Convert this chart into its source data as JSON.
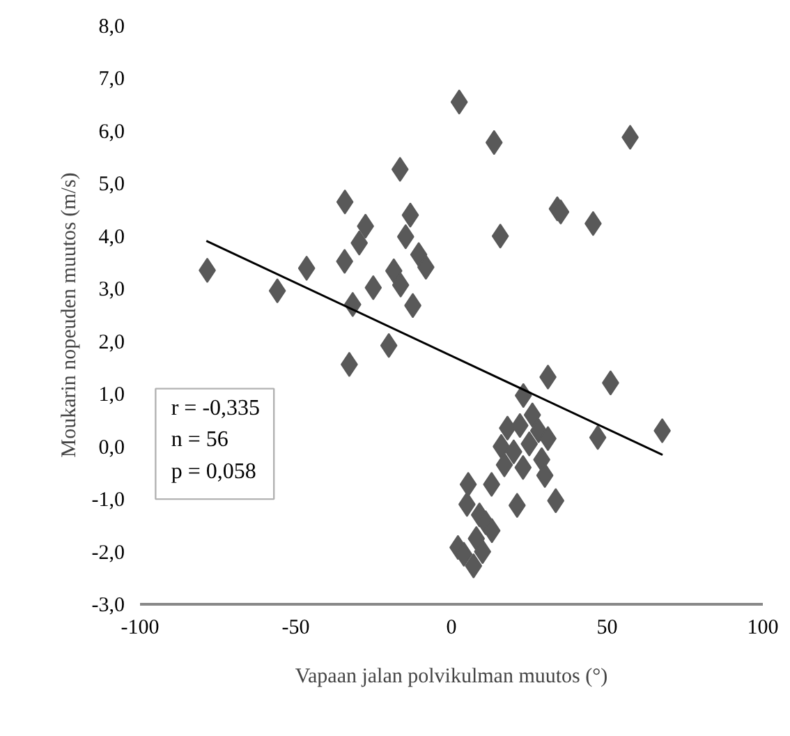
{
  "chart_data": {
    "type": "scatter",
    "xlabel": "Vapaan jalan polvikulman muutos (°)",
    "ylabel": "Moukarin nopeuden muutos (m/s)",
    "series": [
      {
        "color": "#595959",
        "marker": "diamond",
        "x": [
          2.5,
          13.7,
          57.4,
          -16.5,
          -34.2,
          34,
          35.1,
          45.5,
          -13.2,
          15.7,
          -27.6,
          -14.7,
          -29.6,
          -10.5,
          -8.2,
          -34.3,
          -18.5,
          -78.4,
          -46.5,
          -55.9,
          -16.3,
          -25.1,
          -12.4,
          -31.7,
          -20.1,
          -32.8,
          31,
          51.1,
          23.1,
          67.7,
          47,
          33.5,
          21.1,
          12.9,
          5.4,
          7.1,
          2.1,
          18,
          22,
          28,
          31,
          16,
          20,
          25,
          29,
          17,
          23,
          30,
          26,
          5,
          9,
          11,
          13,
          8,
          10,
          4
        ],
        "values": [
          6.55,
          5.78,
          5.88,
          5.27,
          4.65,
          4.52,
          4.46,
          4.24,
          4.4,
          4.0,
          4.19,
          3.99,
          3.87,
          3.65,
          3.41,
          3.52,
          3.34,
          3.35,
          3.39,
          2.96,
          3.07,
          3.02,
          2.68,
          2.7,
          1.92,
          1.56,
          1.32,
          1.21,
          0.97,
          0.3,
          0.17,
          -1.03,
          -1.12,
          -0.72,
          -0.72,
          -2.27,
          -1.92,
          0.35,
          0.4,
          0.3,
          0.15,
          0.0,
          -0.1,
          0.05,
          -0.25,
          -0.35,
          -0.4,
          -0.55,
          0.6,
          -1.1,
          -1.3,
          -1.45,
          -1.6,
          -1.75,
          -2.0,
          -2.05
        ]
      },
      {
        "type": "line",
        "color": "#000000",
        "line_style": "solid",
        "x": [
          -78.7,
          67.8
        ],
        "values": [
          3.91,
          -0.16
        ]
      }
    ],
    "annotations": [
      "r = -0,335",
      "n = 56",
      "p = 0,058"
    ],
    "xlim": [
      -100,
      100
    ],
    "xticks": [
      -100,
      -50,
      0,
      50,
      100
    ],
    "ylim": [
      -3,
      8
    ],
    "yticks": [
      {
        "value": -3,
        "label": "-3,0"
      },
      {
        "value": -2,
        "label": "-2,0"
      },
      {
        "value": -1,
        "label": "-1,0"
      },
      {
        "value": 0,
        "label": "0,0"
      },
      {
        "value": 1,
        "label": "1,0"
      },
      {
        "value": 2,
        "label": "2,0"
      },
      {
        "value": 3,
        "label": "3,0"
      },
      {
        "value": 4,
        "label": "4,0"
      },
      {
        "value": 5,
        "label": "5,0"
      },
      {
        "value": 6,
        "label": "6,0"
      },
      {
        "value": 7,
        "label": "7,0"
      },
      {
        "value": 8,
        "label": "8,0"
      }
    ],
    "grid": false
  }
}
